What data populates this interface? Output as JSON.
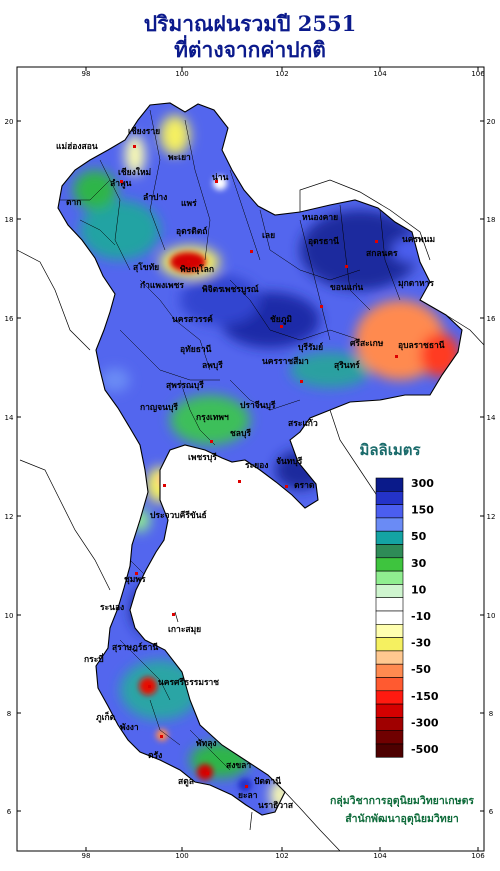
{
  "title": {
    "line1": "ปริมาณฝนรวมปี  2551",
    "line2": "ที่ต่างจากค่าปกติ"
  },
  "axes": {
    "top_ticks": [
      "98",
      "100",
      "102",
      "104",
      "106"
    ],
    "bottom_ticks": [
      "98",
      "100",
      "102",
      "104",
      "106"
    ],
    "left_ticks": [
      "20",
      "18",
      "16",
      "14",
      "12",
      "10",
      "8",
      "6"
    ],
    "right_ticks": [
      "20",
      "18",
      "16",
      "14",
      "12",
      "10",
      "8",
      "6"
    ]
  },
  "legend": {
    "title": "มิลลิเมตร",
    "items": [
      {
        "label": "300",
        "color": "#0a1a8a"
      },
      {
        "label": "",
        "color": "#2433c9"
      },
      {
        "label": "150",
        "color": "#4b5ef0"
      },
      {
        "label": "",
        "color": "#6a8bf5"
      },
      {
        "label": "50",
        "color": "#14a3a3"
      },
      {
        "label": "",
        "color": "#2e8b57"
      },
      {
        "label": "30",
        "color": "#3ec43e"
      },
      {
        "label": "",
        "color": "#90ee90"
      },
      {
        "label": "10",
        "color": "#cff5cf"
      },
      {
        "label": "",
        "color": "#ffffff"
      },
      {
        "label": "-10",
        "color": "#ffffff"
      },
      {
        "label": "",
        "color": "#ffffb0"
      },
      {
        "label": "-30",
        "color": "#f5f060"
      },
      {
        "label": "",
        "color": "#ffc890"
      },
      {
        "label": "-50",
        "color": "#ff8a50"
      },
      {
        "label": "",
        "color": "#ff5a30"
      },
      {
        "label": "-150",
        "color": "#ff1a10"
      },
      {
        "label": "",
        "color": "#d40000"
      },
      {
        "label": "-300",
        "color": "#a00000"
      },
      {
        "label": "",
        "color": "#700000"
      },
      {
        "label": "-500",
        "color": "#4d0000"
      }
    ]
  },
  "credits": {
    "line1": "กลุ่มวิชาการอุตุนิยมวิทยาเกษตร",
    "line2": "สำนักพัฒนาอุตุนิยมวิทยา"
  },
  "places": [
    {
      "name": "เชียงราย",
      "name2": ""
    },
    {
      "name": "แม่ฮ่องสอน",
      "name2": ""
    },
    {
      "name": "เชียงใหม่",
      "name2": ""
    },
    {
      "name": "ลำพูน",
      "name2": ""
    },
    {
      "name": "ลำปาง",
      "name2": ""
    },
    {
      "name": "พะเยา",
      "name2": ""
    },
    {
      "name": "น่าน",
      "name2": ""
    },
    {
      "name": "แพร่",
      "name2": ""
    },
    {
      "name": "ตาก",
      "name2": ""
    },
    {
      "name": "สุโขทัย",
      "name2": ""
    },
    {
      "name": "พิษณุโลก",
      "name2": ""
    },
    {
      "name": "อุตรดิตถ์",
      "name2": ""
    },
    {
      "name": "เลย",
      "name2": ""
    },
    {
      "name": "หนองคาย",
      "name2": ""
    },
    {
      "name": "อุดรธานี",
      "name2": ""
    },
    {
      "name": "สกลนคร",
      "name2": ""
    },
    {
      "name": "นครพนม",
      "name2": ""
    },
    {
      "name": "มุกดาหาร",
      "name2": ""
    },
    {
      "name": "ขอนแก่น",
      "name2": ""
    },
    {
      "name": "กำแพงเพชร",
      "name2": ""
    },
    {
      "name": "พิจิตร",
      "name2": ""
    },
    {
      "name": "เพชรบูรณ์",
      "name2": ""
    },
    {
      "name": "นครสวรรค์",
      "name2": ""
    },
    {
      "name": "ชัยภูมิ",
      "name2": ""
    },
    {
      "name": "อุทัยธานี",
      "name2": ""
    },
    {
      "name": "ลพบุรี",
      "name2": ""
    },
    {
      "name": "สุพรรณบุรี",
      "name2": ""
    },
    {
      "name": "นครราชสีมา",
      "name2": ""
    },
    {
      "name": "บุรีรัมย์",
      "name2": ""
    },
    {
      "name": "สุรินทร์",
      "name2": ""
    },
    {
      "name": "ศรีสะเกษ",
      "name2": ""
    },
    {
      "name": "อุบลราชธานี",
      "name2": ""
    },
    {
      "name": "กาญจนบุรี",
      "name2": ""
    },
    {
      "name": "กรุงเทพฯ",
      "name2": ""
    },
    {
      "name": "ชลบุรี",
      "name2": ""
    },
    {
      "name": "ระยอง",
      "name2": ""
    },
    {
      "name": "จันทบุรี",
      "name2": ""
    },
    {
      "name": "ตราด",
      "name2": ""
    },
    {
      "name": "ปราจีนบุรี",
      "name2": ""
    },
    {
      "name": "สระแก้ว",
      "name2": ""
    },
    {
      "name": "เพชรบุรี",
      "name2": ""
    },
    {
      "name": "ประจวบคีรีขันธ์",
      "name2": ""
    },
    {
      "name": "ชุมพร",
      "name2": ""
    },
    {
      "name": "ระนอง",
      "name2": ""
    },
    {
      "name": "สุราษฎร์ธานี",
      "name2": ""
    },
    {
      "name": "เกาะสมุย",
      "name2": ""
    },
    {
      "name": "นครศรีธรรมราช",
      "name2": ""
    },
    {
      "name": "กระบี่",
      "name2": ""
    },
    {
      "name": "ภูเก็ต",
      "name2": ""
    },
    {
      "name": "พังงา",
      "name2": ""
    },
    {
      "name": "ตรัง",
      "name2": ""
    },
    {
      "name": "พัทลุง",
      "name2": ""
    },
    {
      "name": "สงขลา",
      "name2": ""
    },
    {
      "name": "สตูล",
      "name2": ""
    },
    {
      "name": "ปัตตานี",
      "name2": ""
    },
    {
      "name": "ยะลา",
      "name2": ""
    },
    {
      "name": "นราธิวาส",
      "name2": ""
    }
  ]
}
